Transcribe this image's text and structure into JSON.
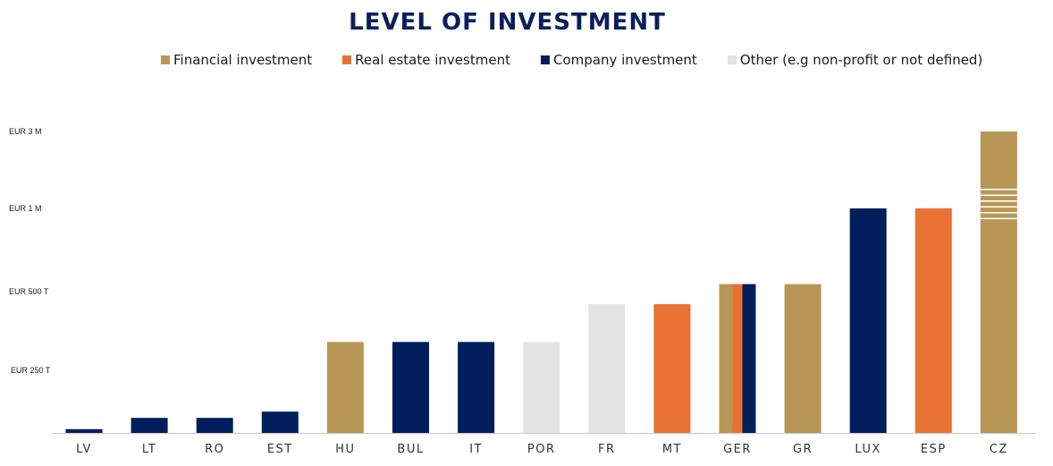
{
  "chart_data": {
    "type": "bar",
    "title": "LEVEL OF INVESTMENT",
    "xlabel": "",
    "ylabel": "",
    "y_tick_labels": [
      "EUR 250 T",
      "EUR 500 T",
      "EUR 1 M",
      "EUR 3 M"
    ],
    "categories": [
      "LV",
      "LT",
      "RO",
      "EST",
      "HU",
      "BUL",
      "IT",
      "POR",
      "FR",
      "MT",
      "GER",
      "GR",
      "LUX",
      "ESP",
      "CZ"
    ],
    "legend_placement": "top",
    "axis_break": {
      "category": "CZ",
      "note": "axis break shown on the CZ bar"
    },
    "series": [
      {
        "name": "Financial investment",
        "color": "#B89756"
      },
      {
        "name": "Real estate investment",
        "color": "#E87234"
      },
      {
        "name": "Company investment",
        "color": "#001E5C"
      },
      {
        "name": "Other (e.g non-profit or not defined)",
        "color": "#E3E3E3"
      }
    ],
    "bars": [
      {
        "category": "LV",
        "value_eur": 15000,
        "series": [
          "Company investment"
        ]
      },
      {
        "category": "LT",
        "value_eur": 60000,
        "series": [
          "Company investment"
        ]
      },
      {
        "category": "RO",
        "value_eur": 60000,
        "series": [
          "Company investment"
        ]
      },
      {
        "category": "EST",
        "value_eur": 85000,
        "series": [
          "Company investment"
        ]
      },
      {
        "category": "HU",
        "value_eur": 340000,
        "series": [
          "Financial investment"
        ]
      },
      {
        "category": "BUL",
        "value_eur": 340000,
        "series": [
          "Company investment"
        ]
      },
      {
        "category": "IT",
        "value_eur": 340000,
        "series": [
          "Company investment"
        ]
      },
      {
        "category": "POR",
        "value_eur": 340000,
        "series": [
          "Other (e.g non-profit or not defined)"
        ]
      },
      {
        "category": "FR",
        "value_eur": 460000,
        "series": [
          "Other (e.g non-profit or not defined)"
        ]
      },
      {
        "category": "MT",
        "value_eur": 460000,
        "series": [
          "Real estate investment"
        ]
      },
      {
        "category": "GER",
        "value_eur": 545000,
        "series": [
          "Financial investment",
          "Real estate investment",
          "Company investment"
        ]
      },
      {
        "category": "GR",
        "value_eur": 545000,
        "series": [
          "Financial investment"
        ]
      },
      {
        "category": "LUX",
        "value_eur": 1000000,
        "series": [
          "Company investment"
        ]
      },
      {
        "category": "ESP",
        "value_eur": 1000000,
        "series": [
          "Real estate investment"
        ]
      },
      {
        "category": "CZ",
        "value_eur": 3000000,
        "series": [
          "Financial investment"
        ]
      }
    ]
  },
  "colors": {
    "title": "#0A1F5C",
    "tick_text": "#1a1a1a",
    "category_text": "#333333",
    "axis_line": "#C8C8C8",
    "break_stripe": "#FFFFFF"
  }
}
